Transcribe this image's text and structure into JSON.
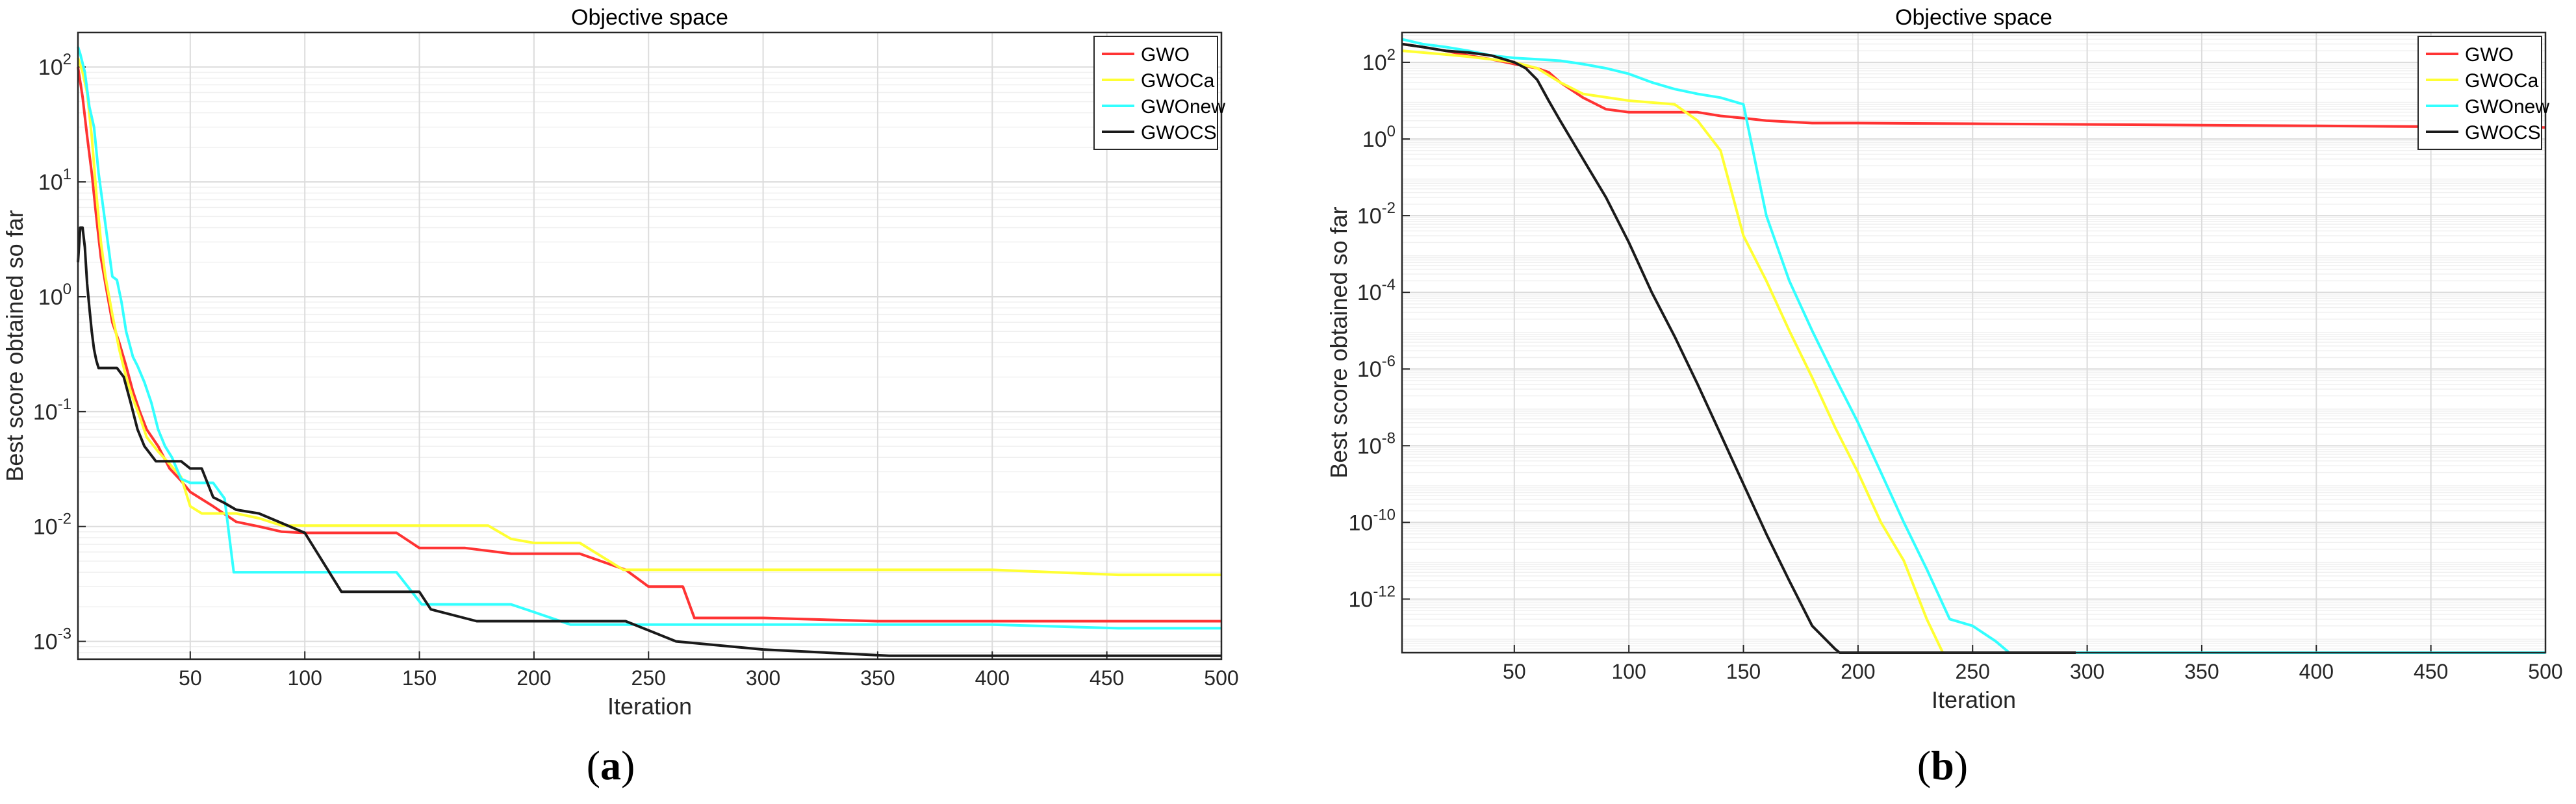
{
  "figure": {
    "captions": [
      {
        "open": "(",
        "letter": "a",
        "close": ")"
      },
      {
        "open": "(",
        "letter": "b",
        "close": ")"
      }
    ]
  },
  "chart_data": [
    {
      "type": "line",
      "title": "Objective space",
      "xlabel": "Iteration",
      "ylabel": "Best score obtained so far",
      "yscale": "log",
      "xlim": [
        1,
        500
      ],
      "ylim": [
        0.0007,
        200
      ],
      "xticks": [
        50,
        100,
        150,
        200,
        250,
        300,
        350,
        400,
        450,
        500
      ],
      "yticks": [
        {
          "exp": 2,
          "value": 100
        },
        {
          "exp": 1,
          "value": 10
        },
        {
          "exp": 0,
          "value": 1
        },
        {
          "exp": -1,
          "value": 0.1
        },
        {
          "exp": -2,
          "value": 0.01
        },
        {
          "exp": -3,
          "value": 0.001
        }
      ],
      "grid": true,
      "legend_position": "top-right",
      "series": [
        {
          "name": "GWO",
          "color": "#ff3333",
          "x": [
            1,
            3,
            5,
            7,
            9,
            11,
            13,
            16,
            19,
            22,
            25,
            28,
            31,
            36,
            41,
            46,
            50,
            60,
            70,
            80,
            90,
            100,
            120,
            140,
            150,
            170,
            190,
            200,
            220,
            240,
            250,
            265,
            270,
            300,
            350,
            400,
            450,
            500
          ],
          "y": [
            100,
            55,
            25,
            12,
            5,
            2.2,
            1.3,
            0.6,
            0.4,
            0.25,
            0.15,
            0.1,
            0.07,
            0.05,
            0.032,
            0.025,
            0.02,
            0.015,
            0.011,
            0.01,
            0.009,
            0.0088,
            0.0088,
            0.0088,
            0.0065,
            0.0065,
            0.0058,
            0.0058,
            0.0058,
            0.0042,
            0.003,
            0.003,
            0.0016,
            0.0016,
            0.0015,
            0.0015,
            0.0015,
            0.0015
          ]
        },
        {
          "name": "GWOCa",
          "color": "#ffff33",
          "x": [
            1,
            3,
            5,
            7,
            9,
            11,
            13,
            16,
            19,
            22,
            25,
            28,
            31,
            36,
            41,
            46,
            50,
            55,
            60,
            70,
            80,
            90,
            100,
            130,
            160,
            170,
            180,
            190,
            200,
            220,
            239,
            270,
            300,
            350,
            400,
            455,
            500
          ],
          "y": [
            120,
            90,
            60,
            25,
            8,
            3,
            1.5,
            0.7,
            0.35,
            0.2,
            0.13,
            0.09,
            0.06,
            0.045,
            0.035,
            0.027,
            0.015,
            0.013,
            0.013,
            0.013,
            0.0118,
            0.0102,
            0.0102,
            0.0102,
            0.0102,
            0.0102,
            0.0102,
            0.0078,
            0.0072,
            0.0072,
            0.0042,
            0.0042,
            0.0042,
            0.0042,
            0.0042,
            0.0038,
            0.0038
          ]
        },
        {
          "name": "GWOnew",
          "color": "#33ffff",
          "x": [
            1,
            2,
            4,
            6,
            8,
            10,
            12,
            14,
            16,
            18,
            20,
            22,
            25,
            27,
            30,
            33,
            36,
            39,
            42,
            46,
            50,
            55,
            60,
            65,
            69,
            80,
            100,
            120,
            140,
            151,
            170,
            190,
            200,
            216,
            240,
            270,
            300,
            350,
            400,
            455,
            500
          ],
          "y": [
            150,
            130,
            90,
            45,
            30,
            12,
            6,
            3,
            1.5,
            1.4,
            0.9,
            0.5,
            0.3,
            0.25,
            0.18,
            0.12,
            0.07,
            0.05,
            0.04,
            0.026,
            0.024,
            0.024,
            0.024,
            0.0175,
            0.004,
            0.004,
            0.004,
            0.004,
            0.004,
            0.0021,
            0.0021,
            0.0021,
            0.0018,
            0.0014,
            0.0014,
            0.0014,
            0.0014,
            0.0014,
            0.0014,
            0.0013,
            0.0013
          ]
        },
        {
          "name": "GWOCS",
          "color": "#1a1a1a",
          "x": [
            1,
            2,
            3,
            4,
            5,
            6,
            7,
            8,
            9,
            10,
            12,
            15,
            18,
            21,
            24,
            27,
            30,
            35,
            40,
            46,
            50,
            55,
            60,
            65,
            70,
            80,
            100,
            116,
            140,
            150,
            155,
            175,
            200,
            240,
            262,
            300,
            355,
            400,
            450,
            500
          ],
          "y": [
            2,
            4,
            4,
            2.7,
            1.3,
            0.8,
            0.5,
            0.35,
            0.28,
            0.24,
            0.24,
            0.24,
            0.24,
            0.2,
            0.12,
            0.07,
            0.05,
            0.037,
            0.037,
            0.037,
            0.032,
            0.032,
            0.018,
            0.016,
            0.014,
            0.013,
            0.0088,
            0.0027,
            0.0027,
            0.0027,
            0.0019,
            0.0015,
            0.0015,
            0.0015,
            0.001,
            0.00085,
            0.00075,
            0.00075,
            0.00075,
            0.00075
          ]
        }
      ]
    },
    {
      "type": "line",
      "title": "Objective space",
      "xlabel": "Iteration",
      "ylabel": "Best score obtained so far",
      "yscale": "log",
      "xlim": [
        1,
        500
      ],
      "ylim": [
        4e-14,
        600
      ],
      "xticks": [
        50,
        100,
        150,
        200,
        250,
        300,
        350,
        400,
        450,
        500
      ],
      "yticks": [
        {
          "exp": 2,
          "value": 100
        },
        {
          "exp": 0,
          "value": 1
        },
        {
          "exp": -2,
          "value": 0.01
        },
        {
          "exp": -4,
          "value": 0.0001
        },
        {
          "exp": -6,
          "value": 1e-06
        },
        {
          "exp": -8,
          "value": 1e-08
        },
        {
          "exp": -10,
          "value": 1e-10
        },
        {
          "exp": -12,
          "value": 1e-12
        }
      ],
      "grid": true,
      "legend_position": "top-right",
      "series": [
        {
          "name": "GWO",
          "color": "#ff3333",
          "x": [
            1,
            10,
            20,
            30,
            40,
            50,
            60,
            65,
            70,
            80,
            90,
            100,
            110,
            120,
            130,
            140,
            150,
            160,
            170,
            180,
            200,
            250,
            300,
            350,
            400,
            450,
            500
          ],
          "y": [
            300,
            250,
            200,
            150,
            120,
            90,
            70,
            55,
            30,
            12,
            6,
            5,
            5,
            5,
            5,
            4,
            3.5,
            3,
            2.8,
            2.6,
            2.6,
            2.5,
            2.4,
            2.3,
            2.2,
            2.1,
            2
          ]
        },
        {
          "name": "GWOCa",
          "color": "#ffff33",
          "x": [
            1,
            10,
            20,
            30,
            40,
            50,
            60,
            70,
            80,
            100,
            120,
            130,
            140,
            150,
            160,
            170,
            180,
            190,
            200,
            210,
            220,
            230,
            237,
            240,
            500
          ],
          "y": [
            200,
            180,
            160,
            140,
            120,
            100,
            70,
            30,
            15,
            10,
            8,
            3,
            0.5,
            0.003,
            0.0002,
            1e-05,
            6e-07,
            3e-08,
            2e-09,
            1e-10,
            1e-11,
            3e-13,
            4e-14,
            4e-14,
            4e-14
          ]
        },
        {
          "name": "GWOnew",
          "color": "#33ffff",
          "x": [
            1,
            10,
            20,
            30,
            40,
            50,
            60,
            70,
            80,
            90,
            100,
            110,
            120,
            130,
            140,
            150,
            160,
            170,
            180,
            190,
            200,
            210,
            220,
            230,
            240,
            250,
            260,
            266,
            300,
            500
          ],
          "y": [
            400,
            300,
            250,
            200,
            150,
            130,
            120,
            110,
            90,
            70,
            50,
            30,
            20,
            15,
            12,
            8,
            0.01,
            0.0002,
            1e-05,
            6e-07,
            4e-08,
            2e-09,
            1e-10,
            6e-12,
            3e-13,
            2e-13,
            8e-14,
            4e-14,
            4e-14,
            4e-14
          ]
        },
        {
          "name": "GWOCS",
          "color": "#1a1a1a",
          "x": [
            1,
            10,
            20,
            30,
            40,
            50,
            55,
            60,
            65,
            70,
            80,
            90,
            100,
            110,
            120,
            130,
            140,
            150,
            160,
            170,
            180,
            190,
            192,
            200,
            295
          ],
          "y": [
            300,
            250,
            200,
            180,
            150,
            100,
            70,
            35,
            10,
            3,
            0.3,
            0.03,
            0.002,
            0.0001,
            7e-06,
            4e-07,
            2e-08,
            1e-09,
            5e-11,
            3e-12,
            2e-13,
            5e-14,
            4e-14,
            4e-14,
            4e-14
          ]
        }
      ]
    }
  ]
}
